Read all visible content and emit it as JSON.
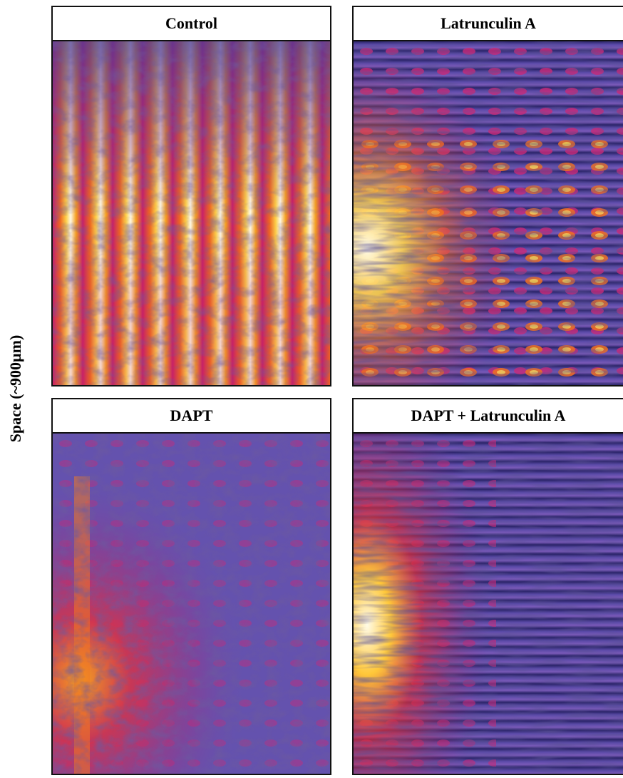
{
  "axis_label": "Space (~900µm)",
  "panels": [
    {
      "title": "Control"
    },
    {
      "title": "Latrunculin A"
    },
    {
      "title": "DAPT"
    },
    {
      "title": "DAPT + Latrunculin A"
    }
  ]
}
